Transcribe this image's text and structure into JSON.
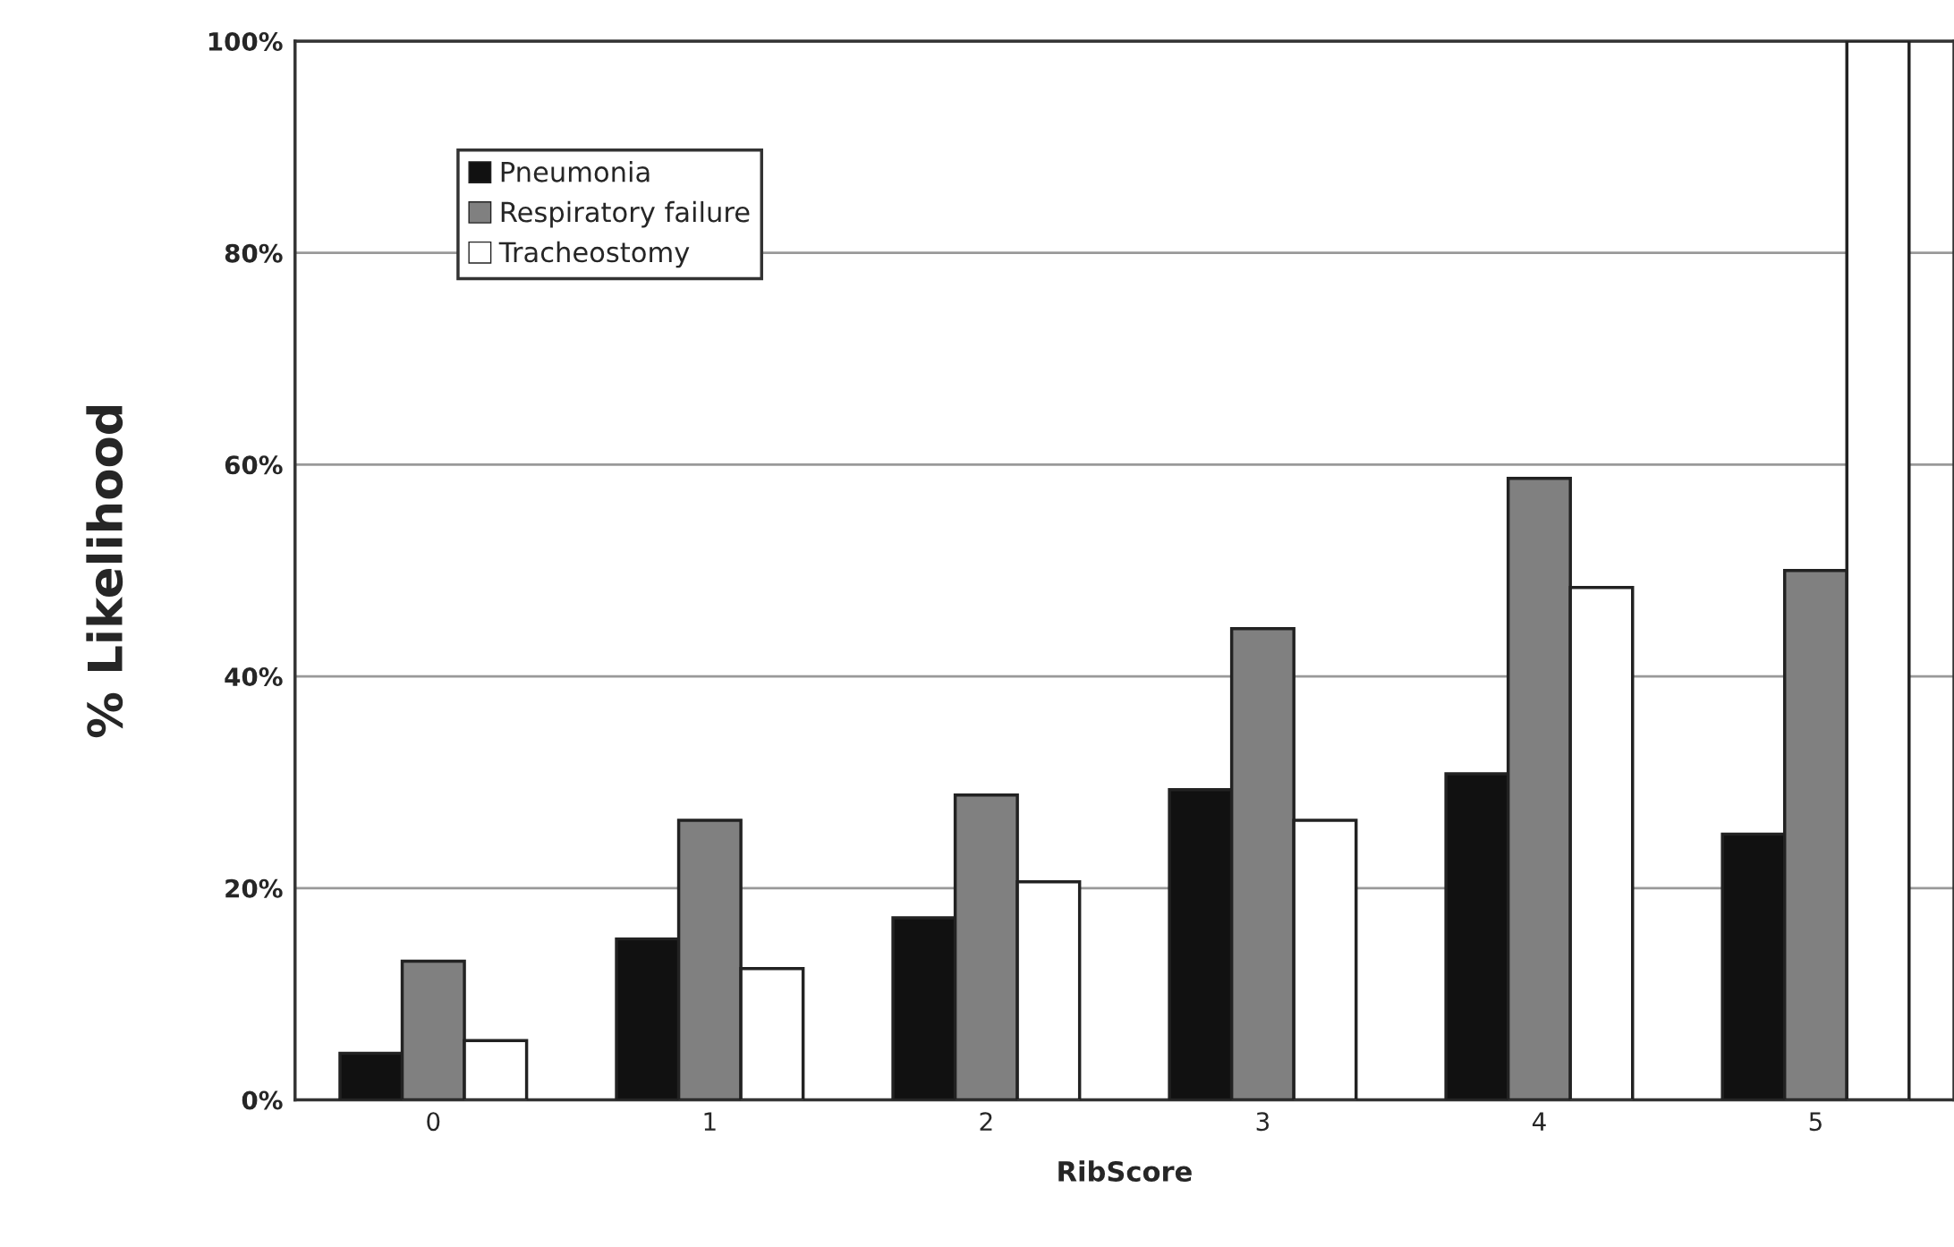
{
  "chart_data": {
    "type": "bar",
    "xlabel": "RibScore",
    "ylabel": "% Likelihood",
    "categories": [
      "0",
      "1",
      "2",
      "3",
      "4",
      "5"
    ],
    "series": [
      {
        "name": "Pneumonia",
        "color": "#111111",
        "values": [
          4.4,
          15.2,
          17.2,
          29.3,
          30.8,
          25.1
        ]
      },
      {
        "name": "Respiratory failure",
        "color": "#808080",
        "values": [
          13.1,
          26.4,
          28.8,
          44.5,
          58.7,
          50.0
        ]
      },
      {
        "name": "Tracheostomy",
        "color": "#ffffff",
        "values": [
          5.6,
          12.4,
          20.6,
          26.4,
          48.4,
          100
        ]
      }
    ],
    "ylim": [
      0,
      100
    ],
    "yticks": [
      {
        "value": 0,
        "label": "0%"
      },
      {
        "value": 20,
        "label": "20%"
      },
      {
        "value": 40,
        "label": "40%"
      },
      {
        "value": 60,
        "label": "60%"
      },
      {
        "value": 80,
        "label": "80%"
      },
      {
        "value": 100,
        "label": "100%"
      }
    ],
    "grid": "y",
    "legend": "top left"
  }
}
